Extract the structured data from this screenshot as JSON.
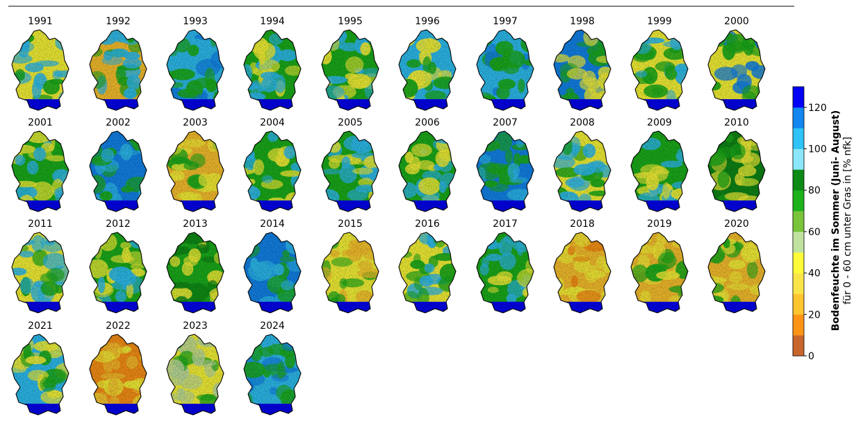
{
  "years": [
    "1991",
    "1992",
    "1993",
    "1994",
    "1995",
    "1996",
    "1997",
    "1998",
    "1999",
    "2000",
    "2001",
    "2002",
    "2003",
    "2004",
    "2005",
    "2006",
    "2007",
    "2008",
    "2009",
    "2010",
    "2011",
    "2012",
    "2013",
    "2014",
    "2015",
    "2016",
    "2017",
    "2018",
    "2019",
    "2020",
    "2021",
    "2022",
    "2023",
    "2024"
  ],
  "colorbar": {
    "title": "Bodenfeuchte im Sommer (Juni- August)",
    "subtitle": "für 0 - 60 cm unter Gras in [% nfk]",
    "ticks": [
      "0",
      "20",
      "40",
      "60",
      "80",
      "100",
      "120"
    ],
    "tick_values": [
      0,
      20,
      40,
      60,
      80,
      100,
      120
    ],
    "max": 130,
    "bins": [
      {
        "from": 0,
        "to": 10,
        "color": "#c8662d"
      },
      {
        "from": 10,
        "to": 20,
        "color": "#ff9416"
      },
      {
        "from": 20,
        "to": 30,
        "color": "#fec52e"
      },
      {
        "from": 30,
        "to": 40,
        "color": "#f9e54a"
      },
      {
        "from": 40,
        "to": 50,
        "color": "#fdfa38"
      },
      {
        "from": 50,
        "to": 60,
        "color": "#c0e2a1"
      },
      {
        "from": 60,
        "to": 70,
        "color": "#79c43a"
      },
      {
        "from": 70,
        "to": 80,
        "color": "#1bb21b"
      },
      {
        "from": 80,
        "to": 90,
        "color": "#0e8a16"
      },
      {
        "from": 90,
        "to": 100,
        "color": "#8ae6f8"
      },
      {
        "from": 100,
        "to": 110,
        "color": "#2ec2f6"
      },
      {
        "from": 110,
        "to": 120,
        "color": "#1287f0"
      },
      {
        "from": 120,
        "to": 130,
        "color": "#0202f6"
      }
    ]
  },
  "year_palette": {
    "1991": [
      "#fdfa38",
      "#2ec2f6",
      "#1bb21b",
      "#0202f6"
    ],
    "1992": [
      "#fec52e",
      "#2ec2f6",
      "#1bb21b",
      "#0202f6"
    ],
    "1993": [
      "#2ec2f6",
      "#1287f0",
      "#1bb21b",
      "#0202f6"
    ],
    "1994": [
      "#1bb21b",
      "#2ec2f6",
      "#fdfa38",
      "#0202f6"
    ],
    "1995": [
      "#1bb21b",
      "#fdfa38",
      "#2ec2f6",
      "#0202f6"
    ],
    "1996": [
      "#2ec2f6",
      "#fdfa38",
      "#1bb21b",
      "#0202f6"
    ],
    "1997": [
      "#2ec2f6",
      "#1bb21b",
      "#1287f0",
      "#0202f6"
    ],
    "1998": [
      "#1287f0",
      "#fdfa38",
      "#1bb21b",
      "#0202f6"
    ],
    "1999": [
      "#fdfa38",
      "#1bb21b",
      "#2ec2f6",
      "#0202f6"
    ],
    "2000": [
      "#fdfa38",
      "#1bb21b",
      "#1287f0",
      "#0202f6"
    ],
    "2001": [
      "#1bb21b",
      "#fdfa38",
      "#2ec2f6",
      "#0202f6"
    ],
    "2002": [
      "#1287f0",
      "#2ec2f6",
      "#1bb21b",
      "#0202f6"
    ],
    "2003": [
      "#fec52e",
      "#fdfa38",
      "#1bb21b",
      "#0202f6"
    ],
    "2004": [
      "#1bb21b",
      "#2ec2f6",
      "#fdfa38",
      "#0202f6"
    ],
    "2005": [
      "#1bb21b",
      "#2ec2f6",
      "#fdfa38",
      "#0202f6"
    ],
    "2006": [
      "#1bb21b",
      "#fdfa38",
      "#2ec2f6",
      "#0202f6"
    ],
    "2007": [
      "#1287f0",
      "#2ec2f6",
      "#1bb21b",
      "#0202f6"
    ],
    "2008": [
      "#fdfa38",
      "#1bb21b",
      "#2ec2f6",
      "#0202f6"
    ],
    "2009": [
      "#1bb21b",
      "#fdfa38",
      "#2ec2f6",
      "#0202f6"
    ],
    "2010": [
      "#0e8a16",
      "#1bb21b",
      "#fdfa38",
      "#0202f6"
    ],
    "2011": [
      "#fdfa38",
      "#1bb21b",
      "#2ec2f6",
      "#0202f6"
    ],
    "2012": [
      "#1bb21b",
      "#fdfa38",
      "#2ec2f6",
      "#0202f6"
    ],
    "2013": [
      "#1bb21b",
      "#0e8a16",
      "#fdfa38",
      "#0202f6"
    ],
    "2014": [
      "#1287f0",
      "#1bb21b",
      "#2ec2f6",
      "#0202f6"
    ],
    "2015": [
      "#fdfa38",
      "#fec52e",
      "#1bb21b",
      "#0202f6"
    ],
    "2016": [
      "#fdfa38",
      "#2ec2f6",
      "#1bb21b",
      "#0202f6"
    ],
    "2017": [
      "#1bb21b",
      "#fdfa38",
      "#2ec2f6",
      "#0202f6"
    ],
    "2018": [
      "#fec52e",
      "#ff9416",
      "#fdfa38",
      "#0202f6"
    ],
    "2019": [
      "#fec52e",
      "#fdfa38",
      "#1bb21b",
      "#0202f6"
    ],
    "2020": [
      "#fec52e",
      "#fdfa38",
      "#1bb21b",
      "#0202f6"
    ],
    "2021": [
      "#2ec2f6",
      "#1bb21b",
      "#fdfa38",
      "#0202f6"
    ],
    "2022": [
      "#ff9416",
      "#fec52e",
      "#fdfa38",
      "#0202f6"
    ],
    "2023": [
      "#fdfa38",
      "#c0e2a1",
      "#1bb21b",
      "#0202f6"
    ],
    "2024": [
      "#2ec2f6",
      "#1bb21b",
      "#1287f0",
      "#0202f6"
    ]
  }
}
